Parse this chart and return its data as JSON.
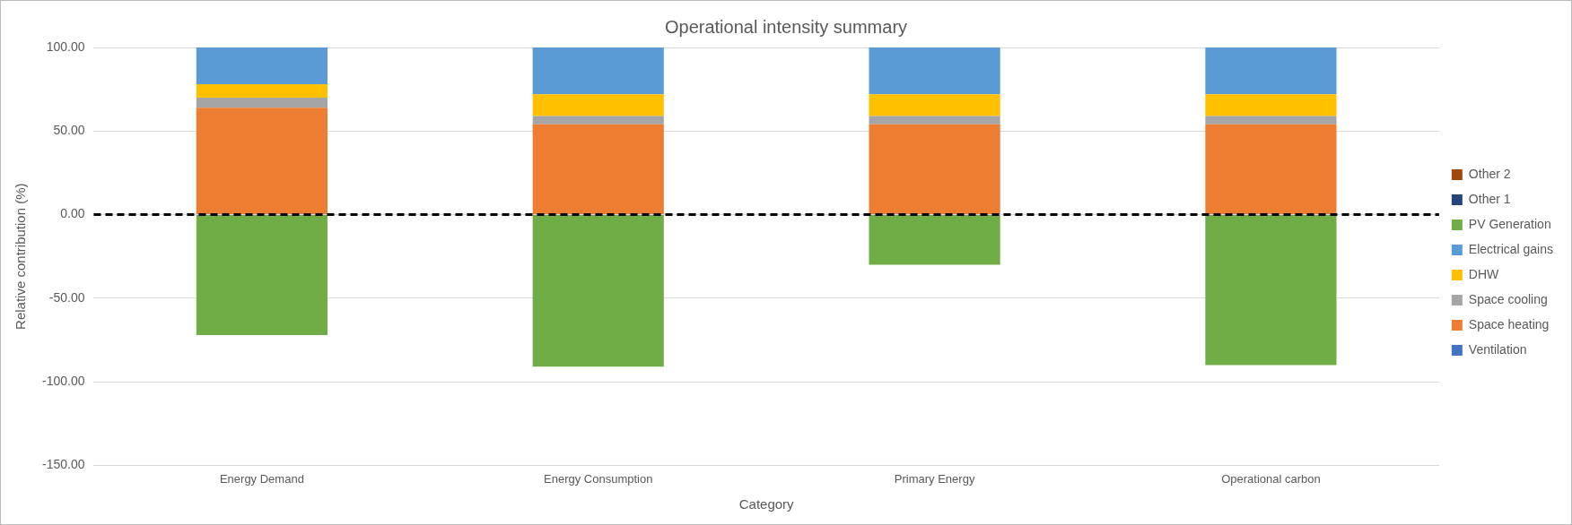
{
  "chart_data": {
    "type": "bar",
    "title": "Operational intensity summary",
    "xlabel": "Category",
    "ylabel": "Relative contribution (%)",
    "categories": [
      "Energy Demand",
      "Energy Consumption",
      "Primary Energy",
      "Operational carbon"
    ],
    "stacked": true,
    "series": [
      {
        "name": "Ventilation",
        "color": "#4472c4",
        "values": [
          0,
          0,
          0,
          0
        ]
      },
      {
        "name": "Space heating",
        "color": "#ed7d31",
        "values": [
          64,
          54,
          54,
          54
        ]
      },
      {
        "name": "Space cooling",
        "color": "#a5a5a5",
        "values": [
          6,
          5,
          5,
          5
        ]
      },
      {
        "name": "DHW",
        "color": "#ffc000",
        "values": [
          8,
          13,
          13,
          13
        ]
      },
      {
        "name": "Electrical gains",
        "color": "#5b9bd5",
        "values": [
          22,
          28,
          28,
          28
        ]
      },
      {
        "name": "PV Generation",
        "color": "#70ad47",
        "values": [
          -72,
          -91,
          -30,
          -90
        ]
      },
      {
        "name": "Other 1",
        "color": "#264478",
        "values": [
          0,
          0,
          0,
          0
        ]
      },
      {
        "name": "Other 2",
        "color": "#9e480e",
        "values": [
          0,
          0,
          0,
          0
        ]
      }
    ],
    "ylim": [
      -150,
      100
    ],
    "yticks": [
      {
        "value": -150,
        "label": "-150.00"
      },
      {
        "value": -100,
        "label": "-100.00"
      },
      {
        "value": -50,
        "label": "-50.00"
      },
      {
        "value": 0,
        "label": "0.00"
      },
      {
        "value": 50,
        "label": "50.00"
      },
      {
        "value": 100,
        "label": "100.00"
      }
    ],
    "ref_lines": [
      {
        "axis": "y",
        "value": 0,
        "color": "#000000",
        "line_style": "dashed"
      }
    ],
    "grid": "y",
    "legend": "right"
  }
}
